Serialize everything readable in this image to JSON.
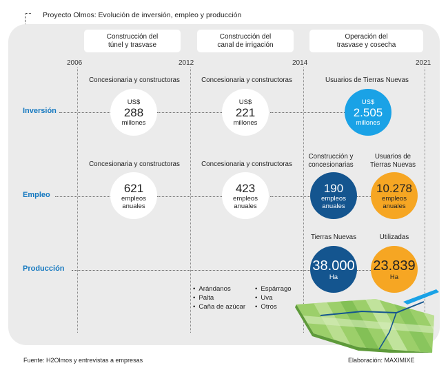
{
  "title": "Proyecto Olmos: Evolución de inversión, empleo y producción",
  "phases": [
    {
      "line1": "Construcción del",
      "line2": "túnel y trasvase"
    },
    {
      "line1": "Construcción del",
      "line2": "canal de irrigación"
    },
    {
      "line1": "Operación del",
      "line2": "trasvase y cosecha"
    }
  ],
  "years": [
    "2006",
    "2012",
    "2014",
    "2021"
  ],
  "rows": {
    "investment": "Inversión",
    "employment": "Empleo",
    "production": "Producción"
  },
  "investment": {
    "headers": [
      "Concesionaria y constructoras",
      "Concesionaria y constructoras",
      "Usuarios de Tierras Nuevas"
    ],
    "circles": [
      {
        "top": "US$",
        "value": "288",
        "unit": "millones"
      },
      {
        "top": "US$",
        "value": "221",
        "unit": "millones"
      },
      {
        "top": "US$",
        "value": "2.505",
        "unit": "millones"
      }
    ]
  },
  "employment": {
    "headers": [
      "Concesionaria y constructoras",
      "Concesionaria y constructoras"
    ],
    "header3": {
      "line1": "Construcción y",
      "line2": "concesionarias"
    },
    "header4": {
      "line1": "Usuarios de",
      "line2": "Tierras Nuevas"
    },
    "circles": [
      {
        "value": "621",
        "unit1": "empleos",
        "unit2": "anuales"
      },
      {
        "value": "423",
        "unit1": "empleos",
        "unit2": "anuales"
      },
      {
        "value": "190",
        "unit1": "empleos",
        "unit2": "anuales"
      },
      {
        "value": "10.278",
        "unit1": "empleos",
        "unit2": "anuales"
      }
    ]
  },
  "production": {
    "headers": [
      "Tierras Nuevas",
      "Utilizadas"
    ],
    "circles": [
      {
        "value": "38.000",
        "unit": "Ha"
      },
      {
        "value": "23.839",
        "unit": "Ha"
      }
    ],
    "crops_left": [
      "Arándanos",
      "Palta",
      "Caña de azúcar"
    ],
    "crops_right": [
      "Espárrago",
      "Uva",
      "Otros"
    ]
  },
  "footer": {
    "source": "Fuente: H2Olmos y entrevistas a empresas",
    "credit": "Elaboración: MAXIMIXE"
  },
  "colors": {
    "accent_blue": "#1679c0",
    "light_blue": "#1aa2e6",
    "navy": "#14558f",
    "orange": "#f6a623",
    "panel": "#ebebeb",
    "field_green": "#9ccf6a"
  }
}
